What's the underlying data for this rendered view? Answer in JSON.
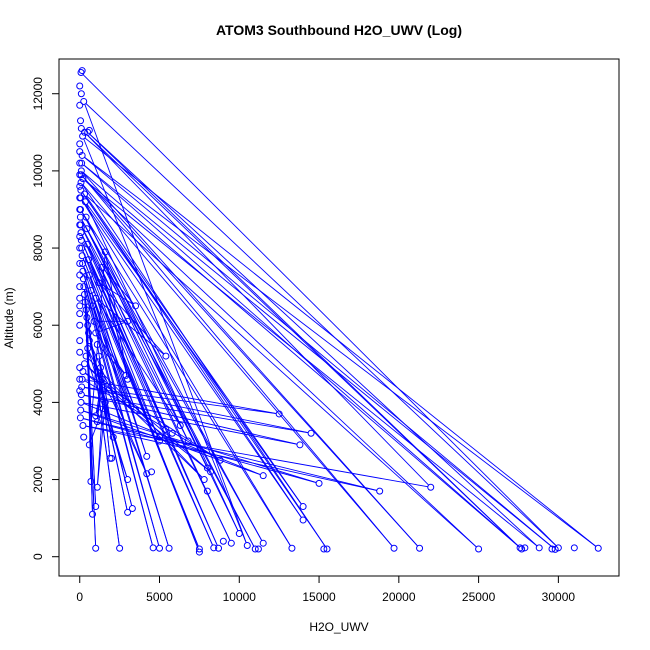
{
  "chart_data": {
    "type": "line",
    "title": "ATOM3 Southbound H2O_UWV (Log)",
    "xlabel": "H2O_UWV",
    "ylabel": "Altitude (m)",
    "xlim": [
      -1300,
      33800
    ],
    "ylim": [
      -500,
      12900
    ],
    "xticks": [
      0,
      5000,
      10000,
      15000,
      20000,
      25000,
      30000
    ],
    "yticks": [
      0,
      2000,
      4000,
      6000,
      8000,
      10000,
      12000
    ],
    "line_color": "#0000ff",
    "marker": "open-circle",
    "series": [
      {
        "points": [
          [
            80,
            12550
          ],
          [
            30000,
            230
          ],
          [
            250,
            11800
          ],
          [
            10500,
            290
          ],
          [
            180,
            10900
          ],
          [
            32500,
            220
          ],
          [
            150,
            10400
          ],
          [
            29800,
            190
          ],
          [
            120,
            10200
          ],
          [
            27700,
            200
          ],
          [
            100,
            10000
          ],
          [
            21300,
            220
          ],
          [
            90,
            9900
          ],
          [
            19700,
            220
          ],
          [
            80,
            9700
          ],
          [
            15500,
            200
          ],
          [
            70,
            9500
          ],
          [
            14000,
            950
          ],
          [
            60,
            9300
          ],
          [
            13300,
            220
          ],
          [
            50,
            9000
          ],
          [
            11500,
            350
          ],
          [
            40,
            8800
          ],
          [
            11000,
            200
          ],
          [
            60,
            8600
          ],
          [
            9500,
            350
          ],
          [
            80,
            8400
          ],
          [
            8700,
            220
          ],
          [
            100,
            8200
          ],
          [
            8400,
            230
          ],
          [
            120,
            8000
          ],
          [
            7500,
            120
          ],
          [
            150,
            7800
          ],
          [
            7500,
            200
          ],
          [
            180,
            7600
          ],
          [
            5600,
            220
          ],
          [
            200,
            7400
          ],
          [
            5000,
            220
          ],
          [
            230,
            7200
          ],
          [
            4600,
            230
          ],
          [
            260,
            7000
          ],
          [
            2500,
            220
          ],
          [
            300,
            6800
          ],
          [
            1000,
            220
          ],
          [
            350,
            6600
          ],
          [
            1000,
            1300
          ],
          [
            400,
            6400
          ],
          [
            800,
            1100
          ],
          [
            450,
            6200
          ],
          [
            700,
            1950
          ],
          [
            500,
            6000
          ],
          [
            3000,
            1150
          ],
          [
            550,
            5800
          ],
          [
            3300,
            1250
          ],
          [
            600,
            5600
          ],
          [
            4200,
            2150
          ],
          [
            500,
            5400
          ],
          [
            3000,
            2000
          ],
          [
            400,
            5200
          ],
          [
            7800,
            2000
          ],
          [
            300,
            5000
          ],
          [
            8200,
            2200
          ],
          [
            200,
            4800
          ],
          [
            8800,
            2500
          ],
          [
            150,
            4600
          ],
          [
            12500,
            3700
          ],
          [
            120,
            4400
          ],
          [
            14500,
            3200
          ],
          [
            100,
            4200
          ],
          [
            13800,
            2900
          ],
          [
            80,
            4000
          ],
          [
            11500,
            2100
          ],
          [
            60,
            3800
          ],
          [
            15000,
            1900
          ],
          [
            40,
            3600
          ],
          [
            18800,
            1700
          ],
          [
            200,
            3400
          ],
          [
            22000,
            1800
          ],
          [
            300,
            11000
          ],
          [
            27600,
            230
          ],
          [
            500,
            11000
          ],
          [
            28800,
            230
          ],
          [
            200,
            9800
          ],
          [
            25000,
            200
          ],
          [
            300,
            9400
          ],
          [
            14000,
            1300
          ],
          [
            350,
            9200
          ],
          [
            10000,
            600
          ],
          [
            400,
            8800
          ],
          [
            8000,
            2300
          ],
          [
            450,
            8500
          ],
          [
            6800,
            3000
          ],
          [
            500,
            8100
          ],
          [
            5400,
            3300
          ],
          [
            550,
            7700
          ],
          [
            5000,
            3000
          ],
          [
            600,
            7300
          ],
          [
            4200,
            2600
          ],
          [
            700,
            6900
          ],
          [
            3500,
            3800
          ],
          [
            800,
            6500
          ],
          [
            3000,
            4000
          ],
          [
            900,
            6100
          ],
          [
            3000,
            6100
          ],
          [
            1000,
            5800
          ],
          [
            2900,
            4700
          ],
          [
            1100,
            5500
          ],
          [
            2100,
            3100
          ],
          [
            1200,
            5200
          ],
          [
            1900,
            2550
          ],
          [
            1300,
            4900
          ],
          [
            1100,
            3500
          ],
          [
            1400,
            4600
          ],
          [
            1000,
            3650
          ],
          [
            1500,
            4300
          ],
          [
            1100,
            1800
          ],
          [
            1600,
            4000
          ],
          [
            600,
            2900
          ],
          [
            1600,
            7900
          ],
          [
            3000,
            4600
          ],
          [
            1400,
            7500
          ],
          [
            3500,
            6500
          ],
          [
            1200,
            7100
          ],
          [
            5400,
            5200
          ],
          [
            1000,
            6700
          ],
          [
            6300,
            3400
          ]
        ],
        "isolated": [
          [
            150,
            12600
          ],
          [
            0,
            12200
          ],
          [
            100,
            12000
          ],
          [
            0,
            11700
          ],
          [
            50,
            11300
          ],
          [
            100,
            11100
          ],
          [
            600,
            11050
          ],
          [
            0,
            10700
          ],
          [
            0,
            10500
          ],
          [
            0,
            10200
          ],
          [
            0,
            9900
          ],
          [
            0,
            9600
          ],
          [
            0,
            9300
          ],
          [
            0,
            9000
          ],
          [
            0,
            8600
          ],
          [
            0,
            8300
          ],
          [
            0,
            8000
          ],
          [
            0,
            7600
          ],
          [
            0,
            7300
          ],
          [
            0,
            7000
          ],
          [
            0,
            6700
          ],
          [
            0,
            6500
          ],
          [
            0,
            6300
          ],
          [
            0,
            6000
          ],
          [
            0,
            5600
          ],
          [
            0,
            5300
          ],
          [
            0,
            4900
          ],
          [
            0,
            4600
          ],
          [
            0,
            4300
          ],
          [
            250,
            3100
          ],
          [
            2000,
            2550
          ],
          [
            4500,
            2200
          ],
          [
            5000,
            3100
          ],
          [
            5800,
            3200
          ],
          [
            8000,
            1700
          ],
          [
            9000,
            400
          ],
          [
            11200,
            200
          ],
          [
            15300,
            200
          ],
          [
            27900,
            230
          ],
          [
            29600,
            200
          ],
          [
            31000,
            230
          ]
        ]
      }
    ]
  }
}
